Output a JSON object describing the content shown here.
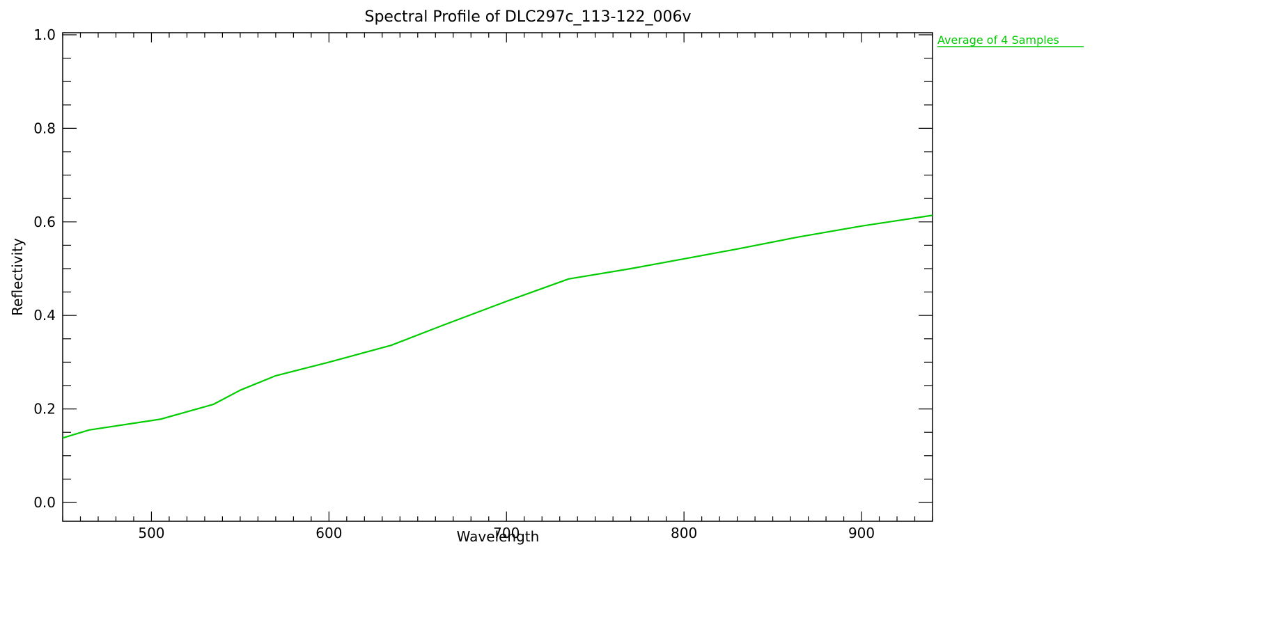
{
  "chart_data": {
    "type": "line",
    "title": "Spectral Profile of DLC297c_113-122_006v",
    "xlabel": "Wavelength",
    "ylabel": "Reflectivity",
    "xlim": [
      450,
      940
    ],
    "ylim": [
      0,
      1.0
    ],
    "x_major_ticks": [
      500,
      600,
      700,
      800,
      900
    ],
    "x_tick_labels": [
      "500",
      "600",
      "700",
      "800",
      "900"
    ],
    "y_major_ticks": [
      0.0,
      0.2,
      0.4,
      0.6,
      0.8,
      1.0
    ],
    "y_tick_labels": [
      "0.0",
      "0.2",
      "0.4",
      "0.6",
      "0.8",
      "1.0"
    ],
    "grid": false,
    "legend_position": "top-right outside plot",
    "series": [
      {
        "name": "Average of 4 Samples",
        "color": "#00cc00",
        "x": [
          450,
          465,
          505,
          535,
          550,
          570,
          600,
          635,
          665,
          700,
          735,
          770,
          800,
          830,
          865,
          900,
          940
        ],
        "y": [
          0.138,
          0.155,
          0.178,
          0.21,
          0.24,
          0.271,
          0.3,
          0.336,
          0.38,
          0.43,
          0.478,
          0.5,
          0.521,
          0.542,
          0.568,
          0.591,
          0.614
        ]
      }
    ]
  }
}
